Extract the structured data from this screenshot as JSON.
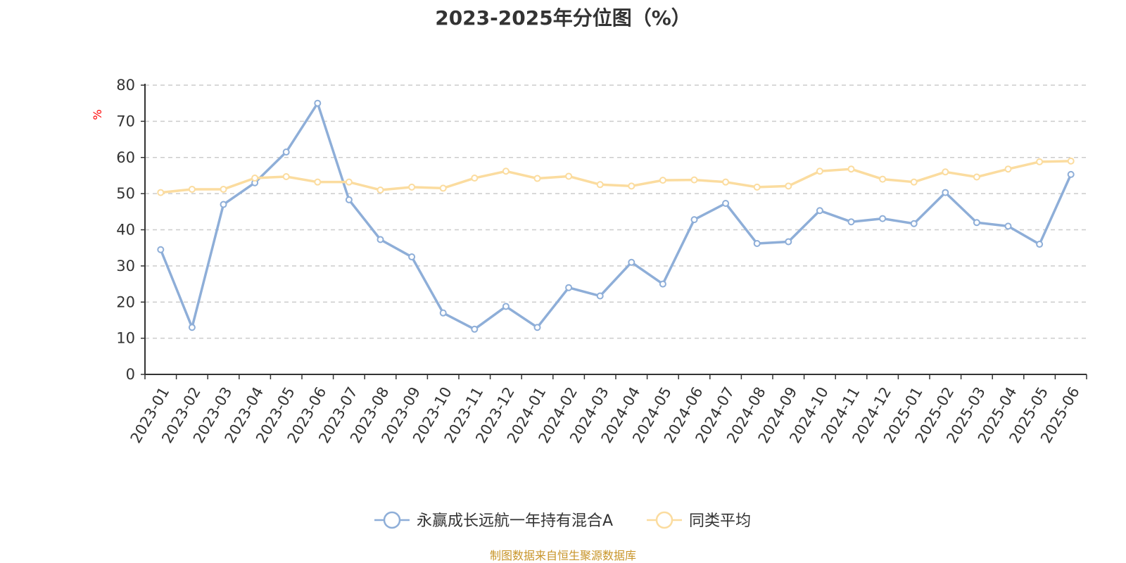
{
  "chart_data": {
    "type": "line",
    "title": "2023-2025年分位图（%）",
    "ylabel": "%",
    "xlabel": "",
    "ylim": [
      0,
      80
    ],
    "yticks": [
      0,
      10,
      20,
      30,
      40,
      50,
      60,
      70,
      80
    ],
    "grid": true,
    "legend_position": "bottom-center",
    "categories": [
      "2023-01",
      "2023-02",
      "2023-03",
      "2023-04",
      "2023-05",
      "2023-06",
      "2023-07",
      "2023-08",
      "2023-09",
      "2023-10",
      "2023-11",
      "2023-12",
      "2024-01",
      "2024-02",
      "2024-03",
      "2024-04",
      "2024-05",
      "2024-06",
      "2024-07",
      "2024-08",
      "2024-09",
      "2024-10",
      "2024-11",
      "2024-12",
      "2025-01",
      "2025-02",
      "2025-03",
      "2025-04",
      "2025-05",
      "2025-06"
    ],
    "series": [
      {
        "name": "永赢成长远航一年持有混合A",
        "color": "#8eaed8",
        "values": [
          34.5,
          13,
          47,
          53,
          61.5,
          75,
          48.3,
          37.3,
          32.5,
          17,
          12.5,
          18.8,
          13,
          24,
          21.7,
          31,
          25,
          42.8,
          47.3,
          36.2,
          36.7,
          45.3,
          42.2,
          43.1,
          41.7,
          50.3,
          42,
          41,
          36,
          55.3
        ]
      },
      {
        "name": "同类平均",
        "color": "#fbdc9f",
        "values": [
          50.3,
          51.2,
          51.2,
          54.3,
          54.7,
          53.2,
          53.2,
          51,
          51.8,
          51.5,
          54.3,
          56.2,
          54.2,
          54.8,
          52.5,
          52.1,
          53.7,
          53.8,
          53.2,
          51.8,
          52.1,
          56.2,
          56.8,
          54,
          53.2,
          56,
          54.6,
          56.8,
          58.8,
          59
        ]
      }
    ]
  },
  "footer": {
    "source": "制图数据来自恒生聚源数据库"
  }
}
